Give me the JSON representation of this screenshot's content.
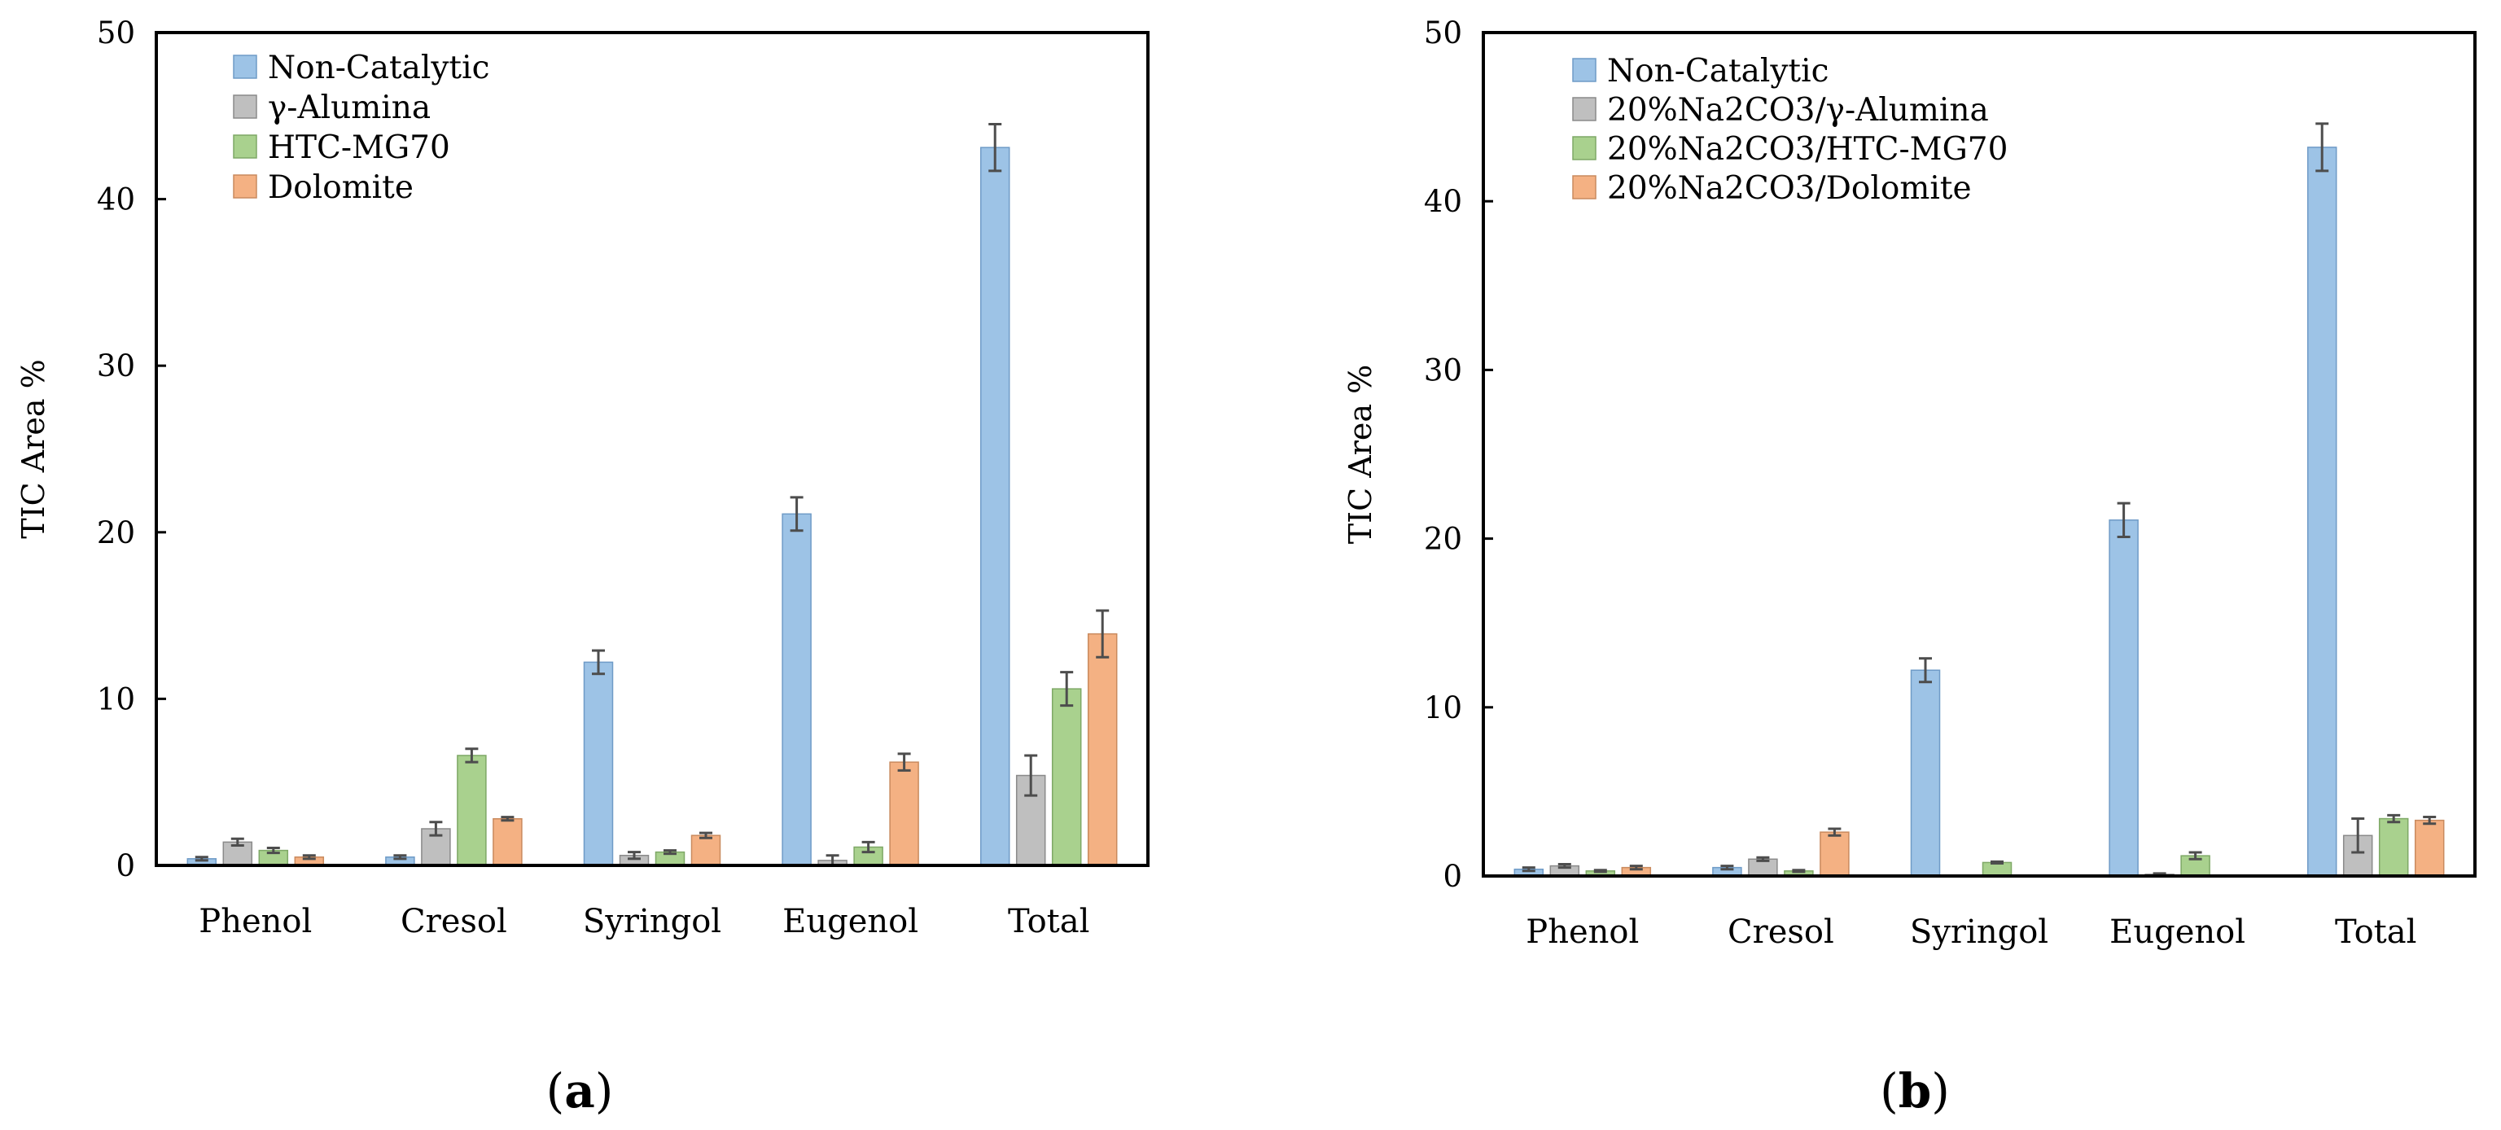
{
  "colors": {
    "series": [
      "#9dc3e6",
      "#bfbfbf",
      "#a9d18e",
      "#f4b183"
    ],
    "edges": [
      "#6f9bc7",
      "#8a8a8a",
      "#7ea866",
      "#c98a5e"
    ],
    "axis": "#000000",
    "error_bar": "#4d4d4d"
  },
  "chart_data": [
    {
      "type": "bar",
      "panel_label": "a",
      "categories": [
        "Phenol",
        "Cresol",
        "Syringol",
        "Eugenol",
        "Total"
      ],
      "ylabel": "TIC Area %",
      "ylim": [
        0,
        50
      ],
      "yticks": [
        "0",
        "10",
        "20",
        "30",
        "40",
        "50"
      ],
      "legend_position": "top-left",
      "grid": false,
      "series": [
        {
          "name": "Non-Catalytic",
          "values": [
            0.4,
            0.5,
            12.2,
            21.1,
            43.1
          ],
          "errors": [
            0.1,
            0.1,
            0.7,
            1.0,
            1.4
          ]
        },
        {
          "name": "γ-Alumina",
          "values": [
            1.4,
            2.2,
            0.6,
            0.3,
            5.4
          ],
          "errors": [
            0.2,
            0.4,
            0.2,
            0.3,
            1.2
          ]
        },
        {
          "name": "HTC-MG70",
          "values": [
            0.9,
            6.6,
            0.8,
            1.1,
            10.6
          ],
          "errors": [
            0.15,
            0.4,
            0.1,
            0.3,
            1.0
          ]
        },
        {
          "name": "Dolomite",
          "values": [
            0.5,
            2.8,
            1.8,
            6.2,
            13.9
          ],
          "errors": [
            0.1,
            0.1,
            0.15,
            0.5,
            1.4
          ]
        }
      ]
    },
    {
      "type": "bar",
      "panel_label": "b",
      "categories": [
        "Phenol",
        "Cresol",
        "Syringol",
        "Eugenol",
        "Total"
      ],
      "ylabel": "TIC Area %",
      "ylim": [
        0,
        50
      ],
      "yticks": [
        "0",
        "10",
        "20",
        "30",
        "40",
        "50"
      ],
      "legend_position": "top-left",
      "grid": false,
      "series": [
        {
          "name": "Non-Catalytic",
          "values": [
            0.4,
            0.5,
            12.2,
            21.1,
            43.2
          ],
          "errors": [
            0.1,
            0.1,
            0.7,
            1.0,
            1.4
          ]
        },
        {
          "name": "20%Na2CO3/γ-Alumina",
          "values": [
            0.6,
            1.0,
            0.0,
            0.1,
            2.4
          ],
          "errors": [
            0.1,
            0.1,
            0.0,
            0.05,
            1.0
          ]
        },
        {
          "name": "20%Na2CO3/HTC-MG70",
          "values": [
            0.3,
            0.3,
            0.8,
            1.2,
            3.4
          ],
          "errors": [
            0.05,
            0.05,
            0.05,
            0.2,
            0.2
          ]
        },
        {
          "name": "20%Na2CO3/Dolomite",
          "values": [
            0.5,
            2.6,
            0.0,
            0.0,
            3.3
          ],
          "errors": [
            0.1,
            0.2,
            0.0,
            0.0,
            0.2
          ]
        }
      ]
    }
  ]
}
